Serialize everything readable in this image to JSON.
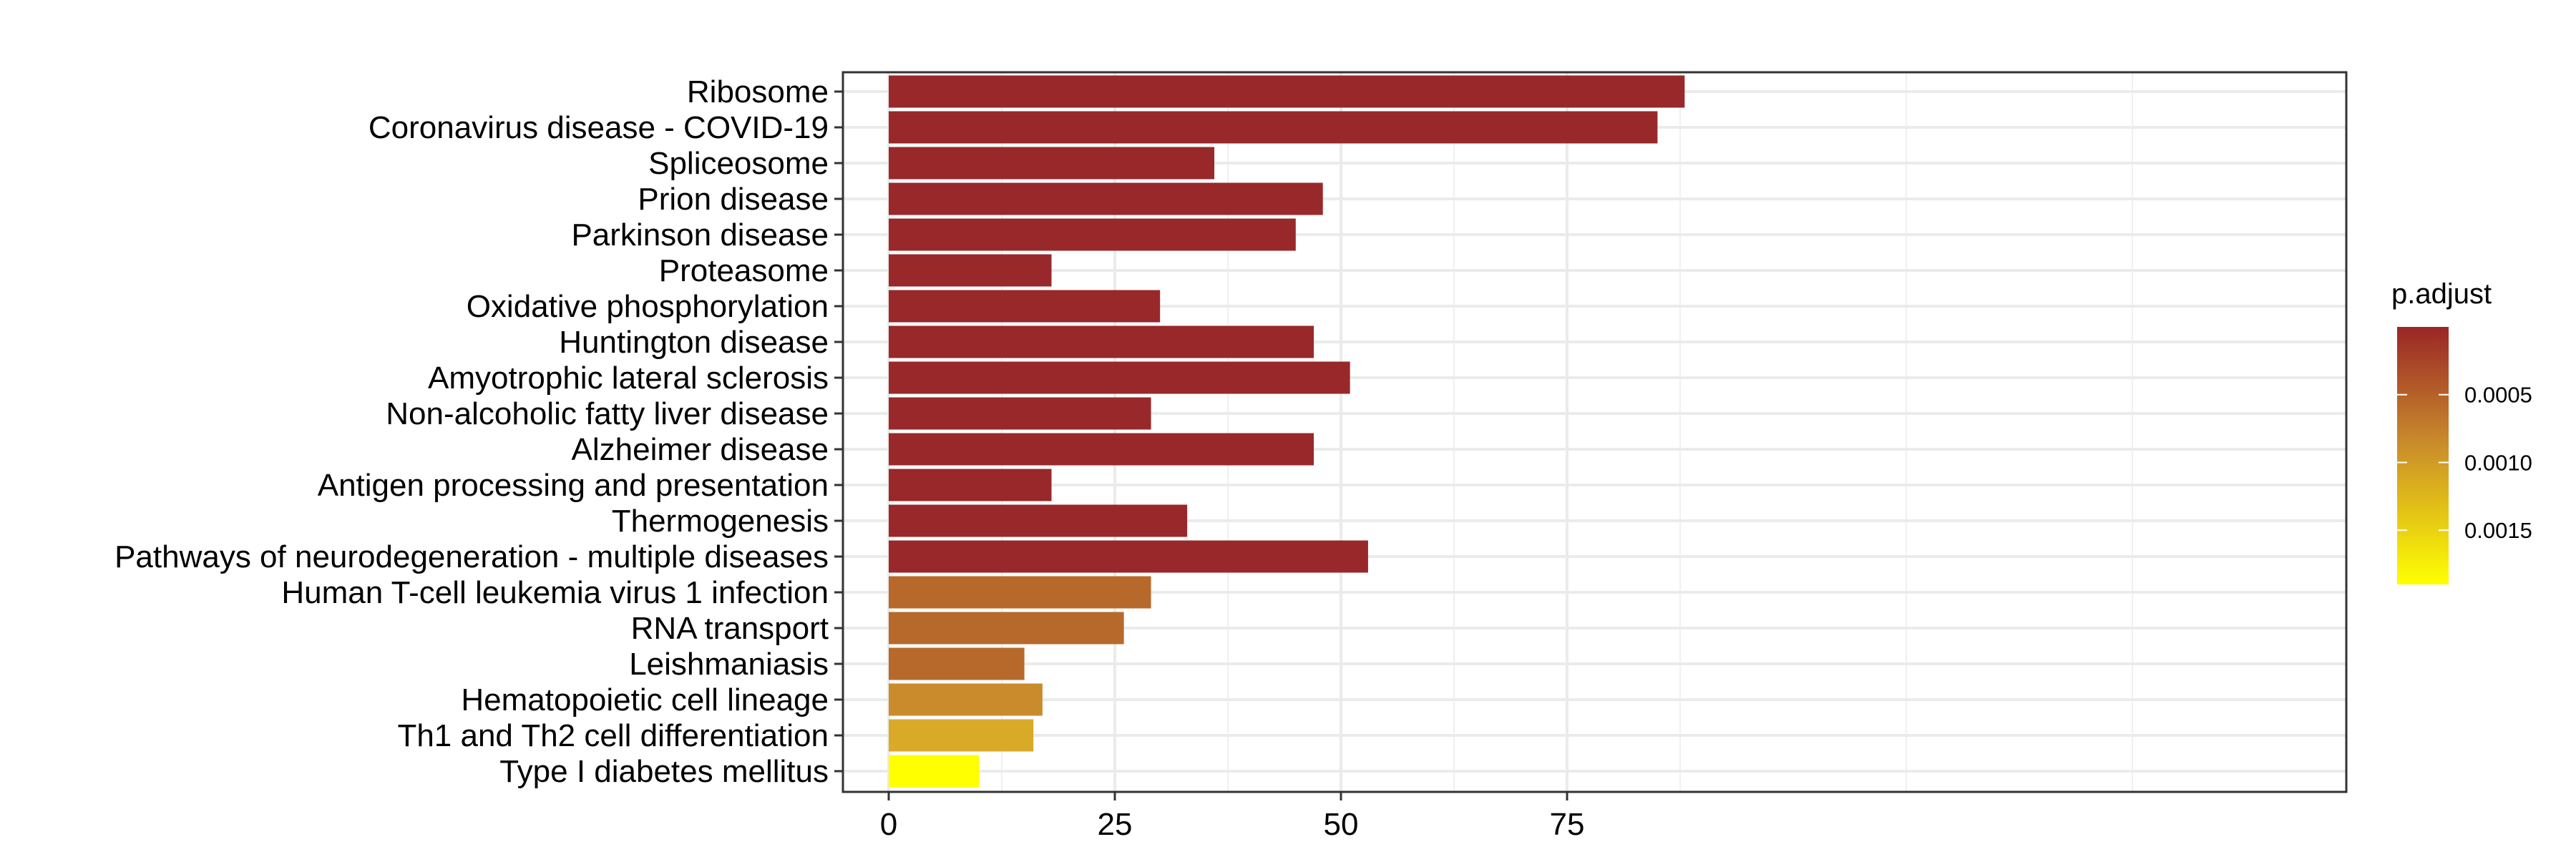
{
  "chart_data": {
    "type": "bar",
    "orientation": "horizontal",
    "title": "",
    "xlabel": "",
    "ylabel": "",
    "xlim": [
      0,
      92
    ],
    "x_ticks": [
      0,
      25,
      50,
      75
    ],
    "grid": true,
    "categories": [
      "Ribosome",
      "Coronavirus disease - COVID-19",
      "Spliceosome",
      "Prion disease",
      "Parkinson disease",
      "Proteasome",
      "Oxidative phosphorylation",
      "Huntington disease",
      "Amyotrophic lateral sclerosis",
      "Non-alcoholic fatty liver disease",
      "Alzheimer disease",
      "Antigen processing and presentation",
      "Thermogenesis",
      "Pathways of neurodegeneration - multiple diseases",
      "Human T-cell leukemia virus 1 infection",
      "RNA transport",
      "Leishmaniasis",
      "Hematopoietic cell lineage",
      "Th1 and Th2 cell differentiation",
      "Type I diabetes mellitus"
    ],
    "values": [
      88,
      85,
      36,
      48,
      45,
      18,
      30,
      47,
      51,
      29,
      47,
      18,
      33,
      53,
      29,
      26,
      15,
      17,
      16,
      10
    ],
    "p_adjust": [
      1e-05,
      1e-05,
      1e-05,
      1e-05,
      1e-05,
      1e-05,
      1e-05,
      1e-05,
      1e-05,
      1e-05,
      1e-05,
      1e-05,
      1e-05,
      1e-05,
      0.0006,
      0.0006,
      0.0006,
      0.0009,
      0.0011,
      0.0019
    ],
    "bar_colors": [
      "#98282a",
      "#98282a",
      "#98282a",
      "#98282a",
      "#98282a",
      "#98282a",
      "#98282a",
      "#98282a",
      "#98282a",
      "#98282a",
      "#98282a",
      "#98282a",
      "#98282a",
      "#98282a",
      "#b7692b",
      "#b7692b",
      "#b7692b",
      "#c98b2b",
      "#d8aa28",
      "#ffff00"
    ],
    "legend": {
      "title": "p.adjust",
      "position": "right",
      "type": "colorbar",
      "range": [
        0,
        0.0019
      ],
      "ticks": [
        "0.0005",
        "0.0010",
        "0.0015"
      ],
      "tick_values": [
        0.0005,
        0.001,
        0.0015
      ],
      "color_low": "#9a2626",
      "color_mid": "#c98b2b",
      "color_high": "#ffff00"
    }
  }
}
